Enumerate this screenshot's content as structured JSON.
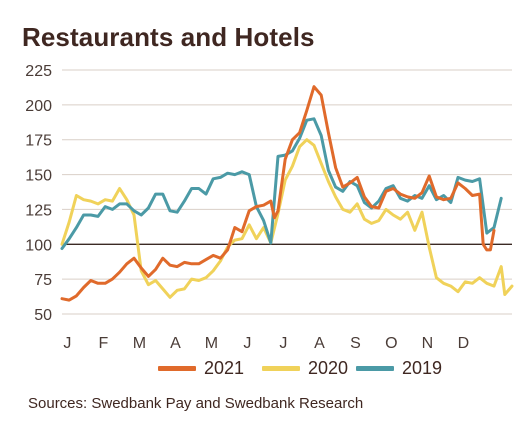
{
  "title": "Restaurants and Hotels",
  "source": "Sources: Swedbank Pay and Swedbank Research",
  "colors": {
    "2021": "#e06a2b",
    "2020": "#f0d25a",
    "2019": "#4b9aa6",
    "grid": "#d9cfc7",
    "baseline": "#3b2a24"
  },
  "chart_data": {
    "type": "line",
    "title": "Restaurants and Hotels",
    "xlabel": "",
    "ylabel": "",
    "x_tick_labels": [
      "J",
      "F",
      "M",
      "A",
      "M",
      "J",
      "J",
      "A",
      "S",
      "O",
      "N",
      "D"
    ],
    "y_ticks": [
      50,
      75,
      100,
      125,
      150,
      175,
      200,
      225
    ],
    "ylim": [
      50,
      225
    ],
    "xlim": [
      0,
      12
    ],
    "reference_line": 100,
    "grid": true,
    "legend_placement": "bottom",
    "series": [
      {
        "name": "2021",
        "color": "#e06a2b",
        "points": [
          [
            0.0,
            61
          ],
          [
            0.2,
            60
          ],
          [
            0.4,
            63
          ],
          [
            0.6,
            69
          ],
          [
            0.8,
            74
          ],
          [
            1.0,
            72
          ],
          [
            1.2,
            72
          ],
          [
            1.4,
            75
          ],
          [
            1.6,
            80
          ],
          [
            1.8,
            86
          ],
          [
            2.0,
            90
          ],
          [
            2.2,
            83
          ],
          [
            2.4,
            77
          ],
          [
            2.6,
            82
          ],
          [
            2.8,
            90
          ],
          [
            3.0,
            85
          ],
          [
            3.2,
            84
          ],
          [
            3.4,
            87
          ],
          [
            3.6,
            86
          ],
          [
            3.8,
            86
          ],
          [
            4.0,
            89
          ],
          [
            4.2,
            92
          ],
          [
            4.4,
            90
          ],
          [
            4.6,
            96
          ],
          [
            4.8,
            112
          ],
          [
            5.0,
            109
          ],
          [
            5.2,
            124
          ],
          [
            5.4,
            127
          ],
          [
            5.6,
            128
          ],
          [
            5.8,
            131
          ],
          [
            5.9,
            119
          ],
          [
            6.0,
            124
          ],
          [
            6.2,
            161
          ],
          [
            6.4,
            175
          ],
          [
            6.6,
            180
          ],
          [
            6.8,
            196
          ],
          [
            7.0,
            213
          ],
          [
            7.2,
            207
          ],
          [
            7.4,
            180
          ],
          [
            7.6,
            155
          ],
          [
            7.8,
            141
          ],
          [
            8.0,
            144
          ],
          [
            8.2,
            148
          ],
          [
            8.4,
            134
          ],
          [
            8.6,
            127
          ],
          [
            8.8,
            126
          ],
          [
            9.0,
            138
          ],
          [
            9.2,
            140
          ],
          [
            9.4,
            136
          ],
          [
            9.6,
            134
          ],
          [
            9.8,
            133
          ],
          [
            10.0,
            137
          ],
          [
            10.2,
            149
          ],
          [
            10.4,
            134
          ],
          [
            10.6,
            132
          ],
          [
            10.8,
            133
          ],
          [
            11.0,
            144
          ],
          [
            11.2,
            140
          ],
          [
            11.4,
            135
          ],
          [
            11.6,
            136
          ],
          [
            11.7,
            100
          ],
          [
            11.8,
            96
          ],
          [
            11.9,
            96
          ],
          [
            12.0,
            110
          ]
        ]
      },
      {
        "name": "2020",
        "color": "#f0d25a",
        "points": [
          [
            0.0,
            100
          ],
          [
            0.2,
            116
          ],
          [
            0.4,
            135
          ],
          [
            0.6,
            132
          ],
          [
            0.8,
            131
          ],
          [
            1.0,
            129
          ],
          [
            1.2,
            132
          ],
          [
            1.4,
            131
          ],
          [
            1.6,
            140
          ],
          [
            1.8,
            132
          ],
          [
            2.0,
            121
          ],
          [
            2.2,
            81
          ],
          [
            2.4,
            71
          ],
          [
            2.6,
            74
          ],
          [
            2.8,
            68
          ],
          [
            3.0,
            62
          ],
          [
            3.2,
            67
          ],
          [
            3.4,
            68
          ],
          [
            3.6,
            75
          ],
          [
            3.8,
            74
          ],
          [
            4.0,
            76
          ],
          [
            4.2,
            81
          ],
          [
            4.4,
            88
          ],
          [
            4.6,
            98
          ],
          [
            4.8,
            103
          ],
          [
            5.0,
            104
          ],
          [
            5.2,
            114
          ],
          [
            5.4,
            104
          ],
          [
            5.6,
            112
          ],
          [
            5.8,
            101
          ],
          [
            6.0,
            122
          ],
          [
            6.2,
            146
          ],
          [
            6.4,
            156
          ],
          [
            6.6,
            170
          ],
          [
            6.8,
            175
          ],
          [
            7.0,
            171
          ],
          [
            7.2,
            158
          ],
          [
            7.4,
            145
          ],
          [
            7.6,
            134
          ],
          [
            7.8,
            125
          ],
          [
            8.0,
            123
          ],
          [
            8.2,
            129
          ],
          [
            8.4,
            118
          ],
          [
            8.6,
            115
          ],
          [
            8.8,
            117
          ],
          [
            9.0,
            125
          ],
          [
            9.2,
            121
          ],
          [
            9.4,
            118
          ],
          [
            9.6,
            123
          ],
          [
            9.8,
            110
          ],
          [
            10.0,
            123
          ],
          [
            10.2,
            98
          ],
          [
            10.4,
            76
          ],
          [
            10.6,
            72
          ],
          [
            10.8,
            70
          ],
          [
            11.0,
            66
          ],
          [
            11.2,
            73
          ],
          [
            11.4,
            72
          ],
          [
            11.6,
            76
          ],
          [
            11.8,
            72
          ],
          [
            12.0,
            70
          ],
          [
            12.2,
            84
          ],
          [
            12.3,
            64
          ],
          [
            12.5,
            70
          ]
        ]
      },
      {
        "name": "2019",
        "color": "#4b9aa6",
        "points": [
          [
            0.0,
            97
          ],
          [
            0.2,
            104
          ],
          [
            0.4,
            112
          ],
          [
            0.6,
            121
          ],
          [
            0.8,
            121
          ],
          [
            1.0,
            120
          ],
          [
            1.2,
            127
          ],
          [
            1.4,
            125
          ],
          [
            1.6,
            129
          ],
          [
            1.8,
            129
          ],
          [
            2.0,
            124
          ],
          [
            2.2,
            121
          ],
          [
            2.4,
            126
          ],
          [
            2.6,
            136
          ],
          [
            2.8,
            136
          ],
          [
            3.0,
            124
          ],
          [
            3.2,
            123
          ],
          [
            3.4,
            131
          ],
          [
            3.6,
            140
          ],
          [
            3.8,
            140
          ],
          [
            4.0,
            136
          ],
          [
            4.2,
            147
          ],
          [
            4.4,
            148
          ],
          [
            4.6,
            151
          ],
          [
            4.8,
            150
          ],
          [
            5.0,
            152
          ],
          [
            5.2,
            150
          ],
          [
            5.4,
            127
          ],
          [
            5.6,
            117
          ],
          [
            5.8,
            101
          ],
          [
            6.0,
            163
          ],
          [
            6.2,
            164
          ],
          [
            6.4,
            167
          ],
          [
            6.6,
            176
          ],
          [
            6.8,
            189
          ],
          [
            7.0,
            190
          ],
          [
            7.2,
            178
          ],
          [
            7.4,
            153
          ],
          [
            7.6,
            141
          ],
          [
            7.8,
            138
          ],
          [
            8.0,
            145
          ],
          [
            8.2,
            142
          ],
          [
            8.4,
            130
          ],
          [
            8.6,
            126
          ],
          [
            8.8,
            131
          ],
          [
            9.0,
            140
          ],
          [
            9.2,
            142
          ],
          [
            9.4,
            133
          ],
          [
            9.6,
            131
          ],
          [
            9.8,
            135
          ],
          [
            10.0,
            133
          ],
          [
            10.2,
            142
          ],
          [
            10.4,
            132
          ],
          [
            10.6,
            135
          ],
          [
            10.8,
            130
          ],
          [
            11.0,
            148
          ],
          [
            11.2,
            146
          ],
          [
            11.4,
            145
          ],
          [
            11.6,
            147
          ],
          [
            11.8,
            108
          ],
          [
            12.0,
            112
          ],
          [
            12.2,
            133
          ]
        ]
      }
    ]
  }
}
